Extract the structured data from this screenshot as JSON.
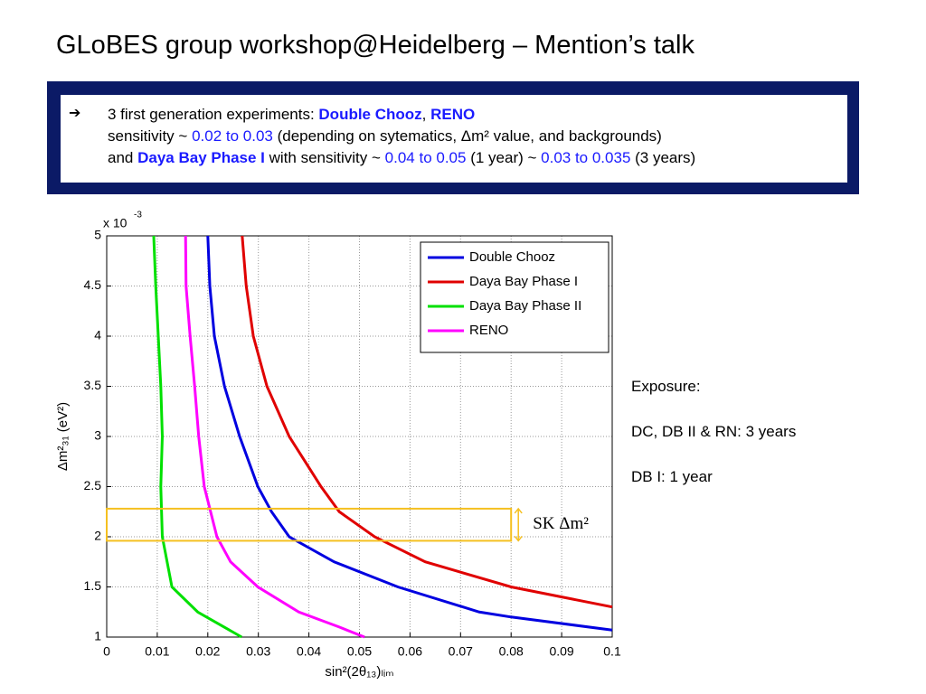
{
  "slide_title": "GLoBES group workshop@Heidelberg – Mention’s talk",
  "banner": {
    "lines": [
      [
        {
          "text": "3 first generation experiments: "
        },
        {
          "text": "Double Chooz",
          "bold": true,
          "color": "#1a1aff"
        },
        {
          "text": ", "
        },
        {
          "text": "RENO",
          "bold": true,
          "color": "#1a1aff"
        }
      ],
      [
        {
          "text": "sensitivity ~ "
        },
        {
          "text": "0.02 to 0.03",
          "color": "#1a1aff"
        },
        {
          "text": " (depending on sytematics, Δm² value, and backgrounds)"
        }
      ],
      [
        {
          "text": "and "
        },
        {
          "text": "Daya Bay Phase I",
          "bold": true,
          "color": "#1a1aff"
        },
        {
          "text": " with sensitivity ~ "
        },
        {
          "text": "0.04 to 0.05",
          "color": "#1a1aff"
        },
        {
          "text": " (1 year) ~ "
        },
        {
          "text": "0.03 to 0.035",
          "color": "#1a1aff"
        },
        {
          "text": " (3 years)"
        }
      ]
    ]
  },
  "notes": [
    "Exposure:",
    "DC, DB II & RN: 3 years",
    "DB I: 1 year"
  ],
  "chart_data": {
    "type": "line",
    "x_label": "sin²(2θ₁₃)ₗᵢₘ",
    "y_label": "Δm²₃₁ (eV²)",
    "y_scale_base": "x 10",
    "y_scale_exponent": "-3",
    "xlim": [
      0,
      0.1
    ],
    "ylim": [
      1,
      5
    ],
    "xticks": [
      0,
      0.01,
      0.02,
      0.03,
      0.04,
      0.05,
      0.06,
      0.07,
      0.08,
      0.09,
      0.1
    ],
    "yticks": [
      1,
      1.5,
      2,
      2.5,
      3,
      3.5,
      4,
      4.5,
      5
    ],
    "grid": true,
    "legend": "northeast",
    "series": [
      {
        "name": "Double Chooz",
        "color": "#0000e0",
        "x": [
          0.02,
          0.0204,
          0.0213,
          0.0233,
          0.0263,
          0.0299,
          0.0326,
          0.0361,
          0.045,
          0.0576,
          0.0737,
          0.08,
          0.1
        ],
        "values": [
          5,
          4.5,
          4,
          3.5,
          3,
          2.5,
          2.25,
          2,
          1.75,
          1.5,
          1.25,
          1.2,
          1.07
        ]
      },
      {
        "name": "Daya Bay Phase I",
        "color": "#e00000",
        "x": [
          0.0268,
          0.0276,
          0.029,
          0.0317,
          0.0361,
          0.0424,
          0.046,
          0.053,
          0.063,
          0.08,
          0.1
        ],
        "values": [
          5,
          4.5,
          4,
          3.5,
          3,
          2.5,
          2.25,
          2,
          1.75,
          1.5,
          1.3
        ]
      },
      {
        "name": "Daya Bay Phase II",
        "color": "#00e000",
        "x": [
          0.0093,
          0.0097,
          0.0102,
          0.0107,
          0.011,
          0.0107,
          0.011,
          0.0129,
          0.018,
          0.0267
        ],
        "values": [
          5,
          4.5,
          4,
          3.5,
          3,
          2.5,
          2,
          1.5,
          1.25,
          1
        ]
      },
      {
        "name": "RENO",
        "color": "#ff00ff",
        "x": [
          0.0156,
          0.0157,
          0.0165,
          0.0174,
          0.0182,
          0.0193,
          0.0218,
          0.0245,
          0.0299,
          0.038,
          0.046,
          0.051
        ],
        "values": [
          5,
          4.5,
          4,
          3.5,
          3,
          2.5,
          2,
          1.75,
          1.5,
          1.25,
          1.1,
          1
        ]
      }
    ],
    "highlight": {
      "label": "SK Δm²",
      "color": "#f5c020",
      "xlim": [
        0,
        0.08
      ],
      "ylim": [
        1.96,
        2.28
      ]
    }
  }
}
